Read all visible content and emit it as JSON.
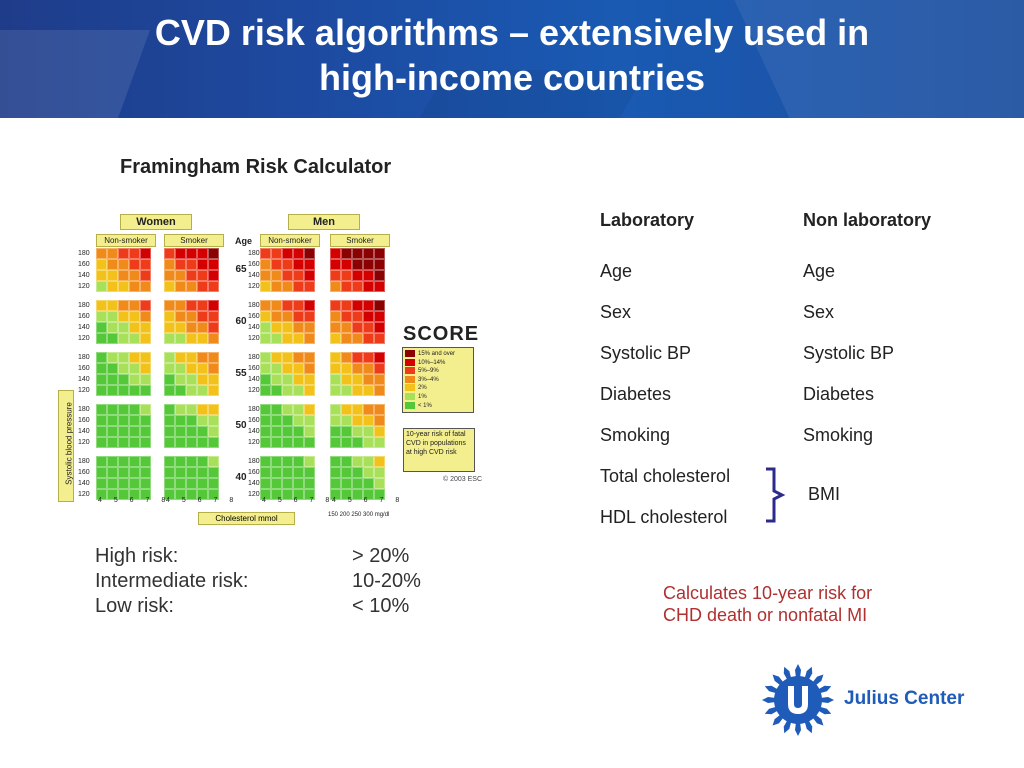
{
  "header": {
    "title_line1": "CVD risk algorithms – extensively used in",
    "title_line2": "high-income countries"
  },
  "subtitle": "Framingham Risk Calculator",
  "figure": {
    "panel_women": "Women",
    "panel_men": "Men",
    "non_smoker": "Non-smoker",
    "smoker": "Smoker",
    "age_head": "Age",
    "ages": [
      "65",
      "60",
      "55",
      "50",
      "40"
    ],
    "bp_values": [
      "180",
      "160",
      "140",
      "120"
    ],
    "y_axis": "Systolic blood pressure",
    "chol_values": "4 5 6 7 8",
    "chol_label": "Cholesterol mmol",
    "mgdl": "150 200 250 300 mg/dl",
    "score_logo": "SCORE",
    "legend": [
      "15% and over",
      "10%–14%",
      "5%–9%",
      "3%–4%",
      "2%",
      "1%",
      "< 1%"
    ],
    "legend_colors": [
      "#8b0000",
      "#d40000",
      "#ee3b1a",
      "#f08a1a",
      "#f2c21a",
      "#a8e05a",
      "#55c83a"
    ],
    "note": "10-year risk of fatal CVD in populations at high CVD risk",
    "copyright": "© 2003 ESC"
  },
  "risk": {
    "high_label": "High risk:",
    "high_value": "> 20%",
    "mid_label": "Intermediate risk:",
    "mid_value": "10-20%",
    "low_label": "Low risk:",
    "low_value": "< 10%"
  },
  "columns": {
    "lab_head": "Laboratory",
    "nonlab_head": "Non laboratory",
    "lab_items": [
      "Age",
      "Sex",
      "Systolic BP",
      "Diabetes",
      "Smoking",
      "Total cholesterol",
      "HDL cholesterol"
    ],
    "nonlab_items": [
      "Age",
      "Sex",
      "Systolic BP",
      "Diabetes",
      "Smoking",
      "BMI"
    ]
  },
  "calc_note_line1": "Calculates 10-year risk for",
  "calc_note_line2": "CHD death or nonfatal MI",
  "logo_text": "Julius Center",
  "logo_letter": "U"
}
